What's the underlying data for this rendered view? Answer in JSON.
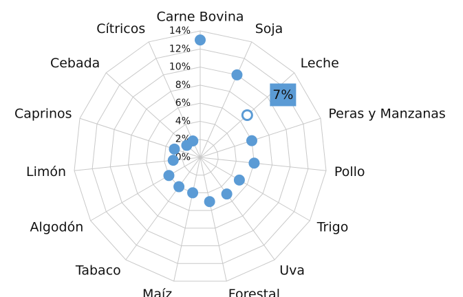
{
  "chart_data": {
    "type": "radar",
    "categories": [
      "Carne Bovina",
      "Soja",
      "Leche",
      "Peras y Manzanas",
      "Pollo",
      "Trigo",
      "Uva",
      "Forestal",
      "Maíz",
      "Tabaco",
      "Algodón",
      "Limón",
      "Caprinos",
      "Cebada",
      "Cítricos"
    ],
    "values": [
      13,
      10,
      7,
      6,
      6,
      5,
      5,
      5,
      4,
      4,
      4,
      3,
      3,
      2,
      2
    ],
    "value_labels": [
      null,
      null,
      "7%",
      null,
      null,
      null,
      null,
      null,
      null,
      null,
      null,
      null,
      null,
      null,
      null
    ],
    "color": "#5b9bd5",
    "ylim": [
      0,
      14
    ],
    "yticks": [
      {
        "value": 0,
        "label": "0%"
      },
      {
        "value": 2,
        "label": "2%"
      },
      {
        "value": 4,
        "label": "4%"
      },
      {
        "value": 6,
        "label": "6%"
      },
      {
        "value": 8,
        "label": "8%"
      },
      {
        "value": 10,
        "label": "10%"
      },
      {
        "value": 12,
        "label": "12%"
      },
      {
        "value": 14,
        "label": "14%"
      }
    ],
    "grid": true
  }
}
